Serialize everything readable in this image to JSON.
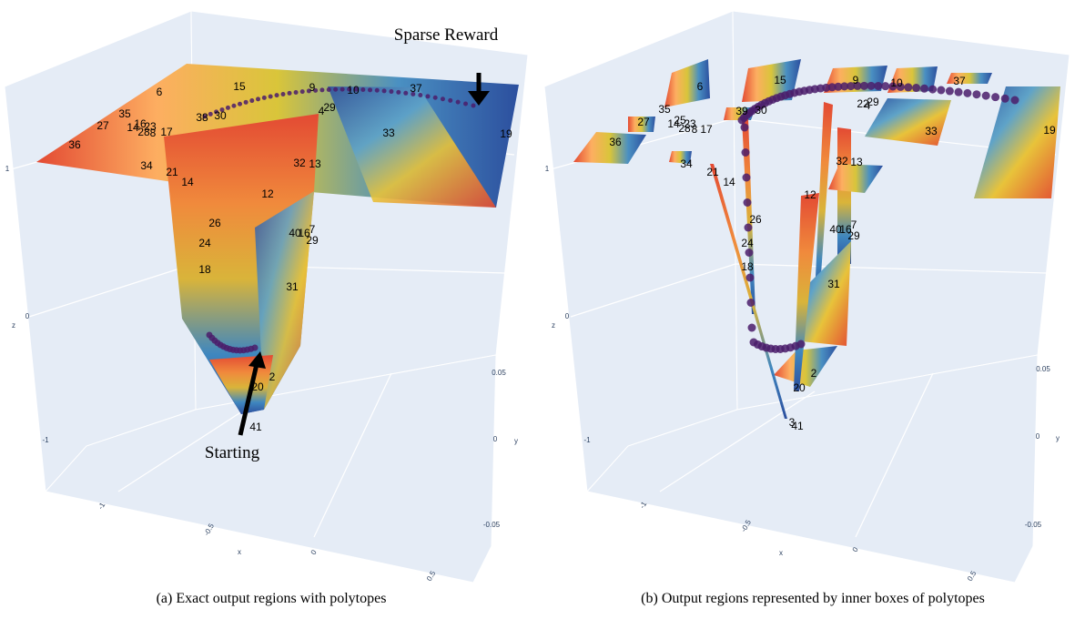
{
  "panels": [
    {
      "caption": "(a) Exact output regions with polytopes",
      "annotations": [
        "Sparse Reward",
        "Starting"
      ],
      "region_labels": [
        "6",
        "15",
        "9",
        "10",
        "37",
        "35",
        "27",
        "14",
        "16",
        "23",
        "28",
        "8",
        "17",
        "36",
        "38",
        "30",
        "29",
        "4",
        "33",
        "19",
        "34",
        "21",
        "32",
        "13",
        "14",
        "12",
        "26",
        "40",
        "16",
        "7",
        "29",
        "24",
        "18",
        "31",
        "2",
        "20",
        "41"
      ],
      "axes": {
        "x_label": "x",
        "y_label": "y",
        "z_label": "z",
        "x_ticks": [
          "-1",
          "-0.5",
          "0",
          "0.5"
        ],
        "y_ticks": [
          "0.05",
          "0",
          "-0.05"
        ],
        "z_ticks": [
          "1",
          "0",
          "-1"
        ]
      }
    },
    {
      "caption": "(b) Output regions represented by inner boxes of polytopes",
      "region_labels": [
        "6",
        "15",
        "9",
        "10",
        "37",
        "35",
        "27",
        "14",
        "25",
        "23",
        "28",
        "8",
        "17",
        "36",
        "39",
        "30",
        "22",
        "29",
        "4",
        "33",
        "19",
        "34",
        "21",
        "14",
        "32",
        "13",
        "12",
        "26",
        "40",
        "16",
        "7",
        "29",
        "24",
        "18",
        "31",
        "2",
        "20",
        "3",
        "41"
      ],
      "axes": {
        "x_label": "x",
        "y_label": "y",
        "z_label": "z",
        "x_ticks": [
          "-1",
          "-0.5",
          "0",
          "0.5"
        ],
        "y_ticks": [
          "0.05",
          "0",
          "-0.05"
        ],
        "z_ticks": [
          "1",
          "0",
          "-1"
        ]
      }
    }
  ]
}
